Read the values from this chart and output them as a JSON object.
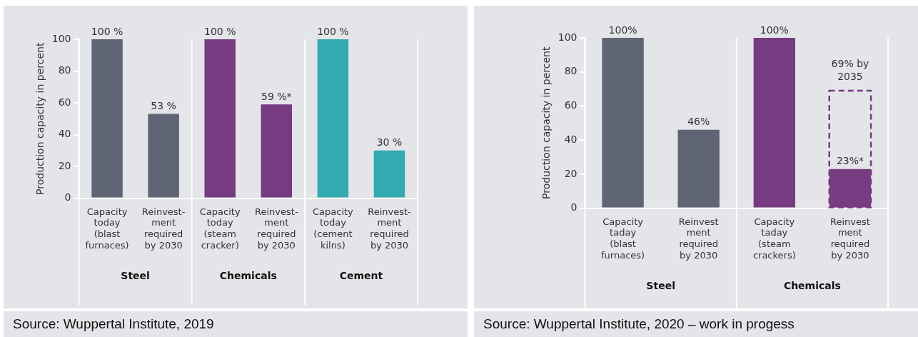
{
  "chart_data": [
    {
      "type": "bar",
      "ylabel": "Production capacity in percent",
      "categories": [
        "Capacity\ntoday\n(blast\nfurnaces)",
        "Reinvest-\nment\nrequired\nby 2030",
        "Capacity\ntoday\n(steam\ncracker)",
        "Reinvest-\nment\nrequired\nby 2030",
        "Capacity\ntoday\n(cement\nkilns)",
        "Reinvest-\nment\nrequired\nby 2030"
      ],
      "values": [
        100,
        53,
        100,
        59,
        100,
        30
      ],
      "colors": [
        "#5f6574",
        "#5f6574",
        "#763b80",
        "#763b80",
        "#33a9b0",
        "#33a9b0"
      ],
      "value_labels": [
        "100 %",
        "53 %",
        "100 %",
        "59 %*",
        "100 %",
        "30 %"
      ],
      "ylim": [
        0,
        100
      ],
      "yticks": [
        0,
        20,
        40,
        60,
        80,
        100
      ],
      "grid": false,
      "legend": false,
      "annotations": [
        "Steel",
        "Chemicals",
        "Cement",
        "Source: Wuppertal Institute, 2019"
      ]
    },
    {
      "type": "bar",
      "ylabel": "Production capacity in percent",
      "categories": [
        "Capacity\ntaday\n(blast\nfurnaces)",
        "Reinvest\nment\nrequired\nby 2030",
        "Capacity\ntaday\n(steam\ncrackers)",
        "Reinvest\nment\nrequired\nby 2030"
      ],
      "series": [
        {
          "values": [
            100,
            46,
            100,
            23
          ],
          "colors": [
            "#5f6574",
            "#5f6574",
            "#763b80",
            "#763b80"
          ],
          "value_labels": [
            "100%",
            "46%",
            "100%",
            "23%*"
          ]
        },
        {
          "values": [
            null,
            null,
            null,
            69
          ],
          "color": "#763b80",
          "line_style": "dashed",
          "value_labels": [
            null,
            null,
            null,
            "69% by 2035"
          ]
        }
      ],
      "ylim": [
        0,
        100
      ],
      "yticks": [
        0,
        20,
        40,
        60,
        80,
        100
      ],
      "grid": false,
      "legend": false,
      "annotations": [
        "Steel",
        "Chemicals",
        "Source: Wuppertal Institute, 2020 – work in progess"
      ]
    }
  ]
}
